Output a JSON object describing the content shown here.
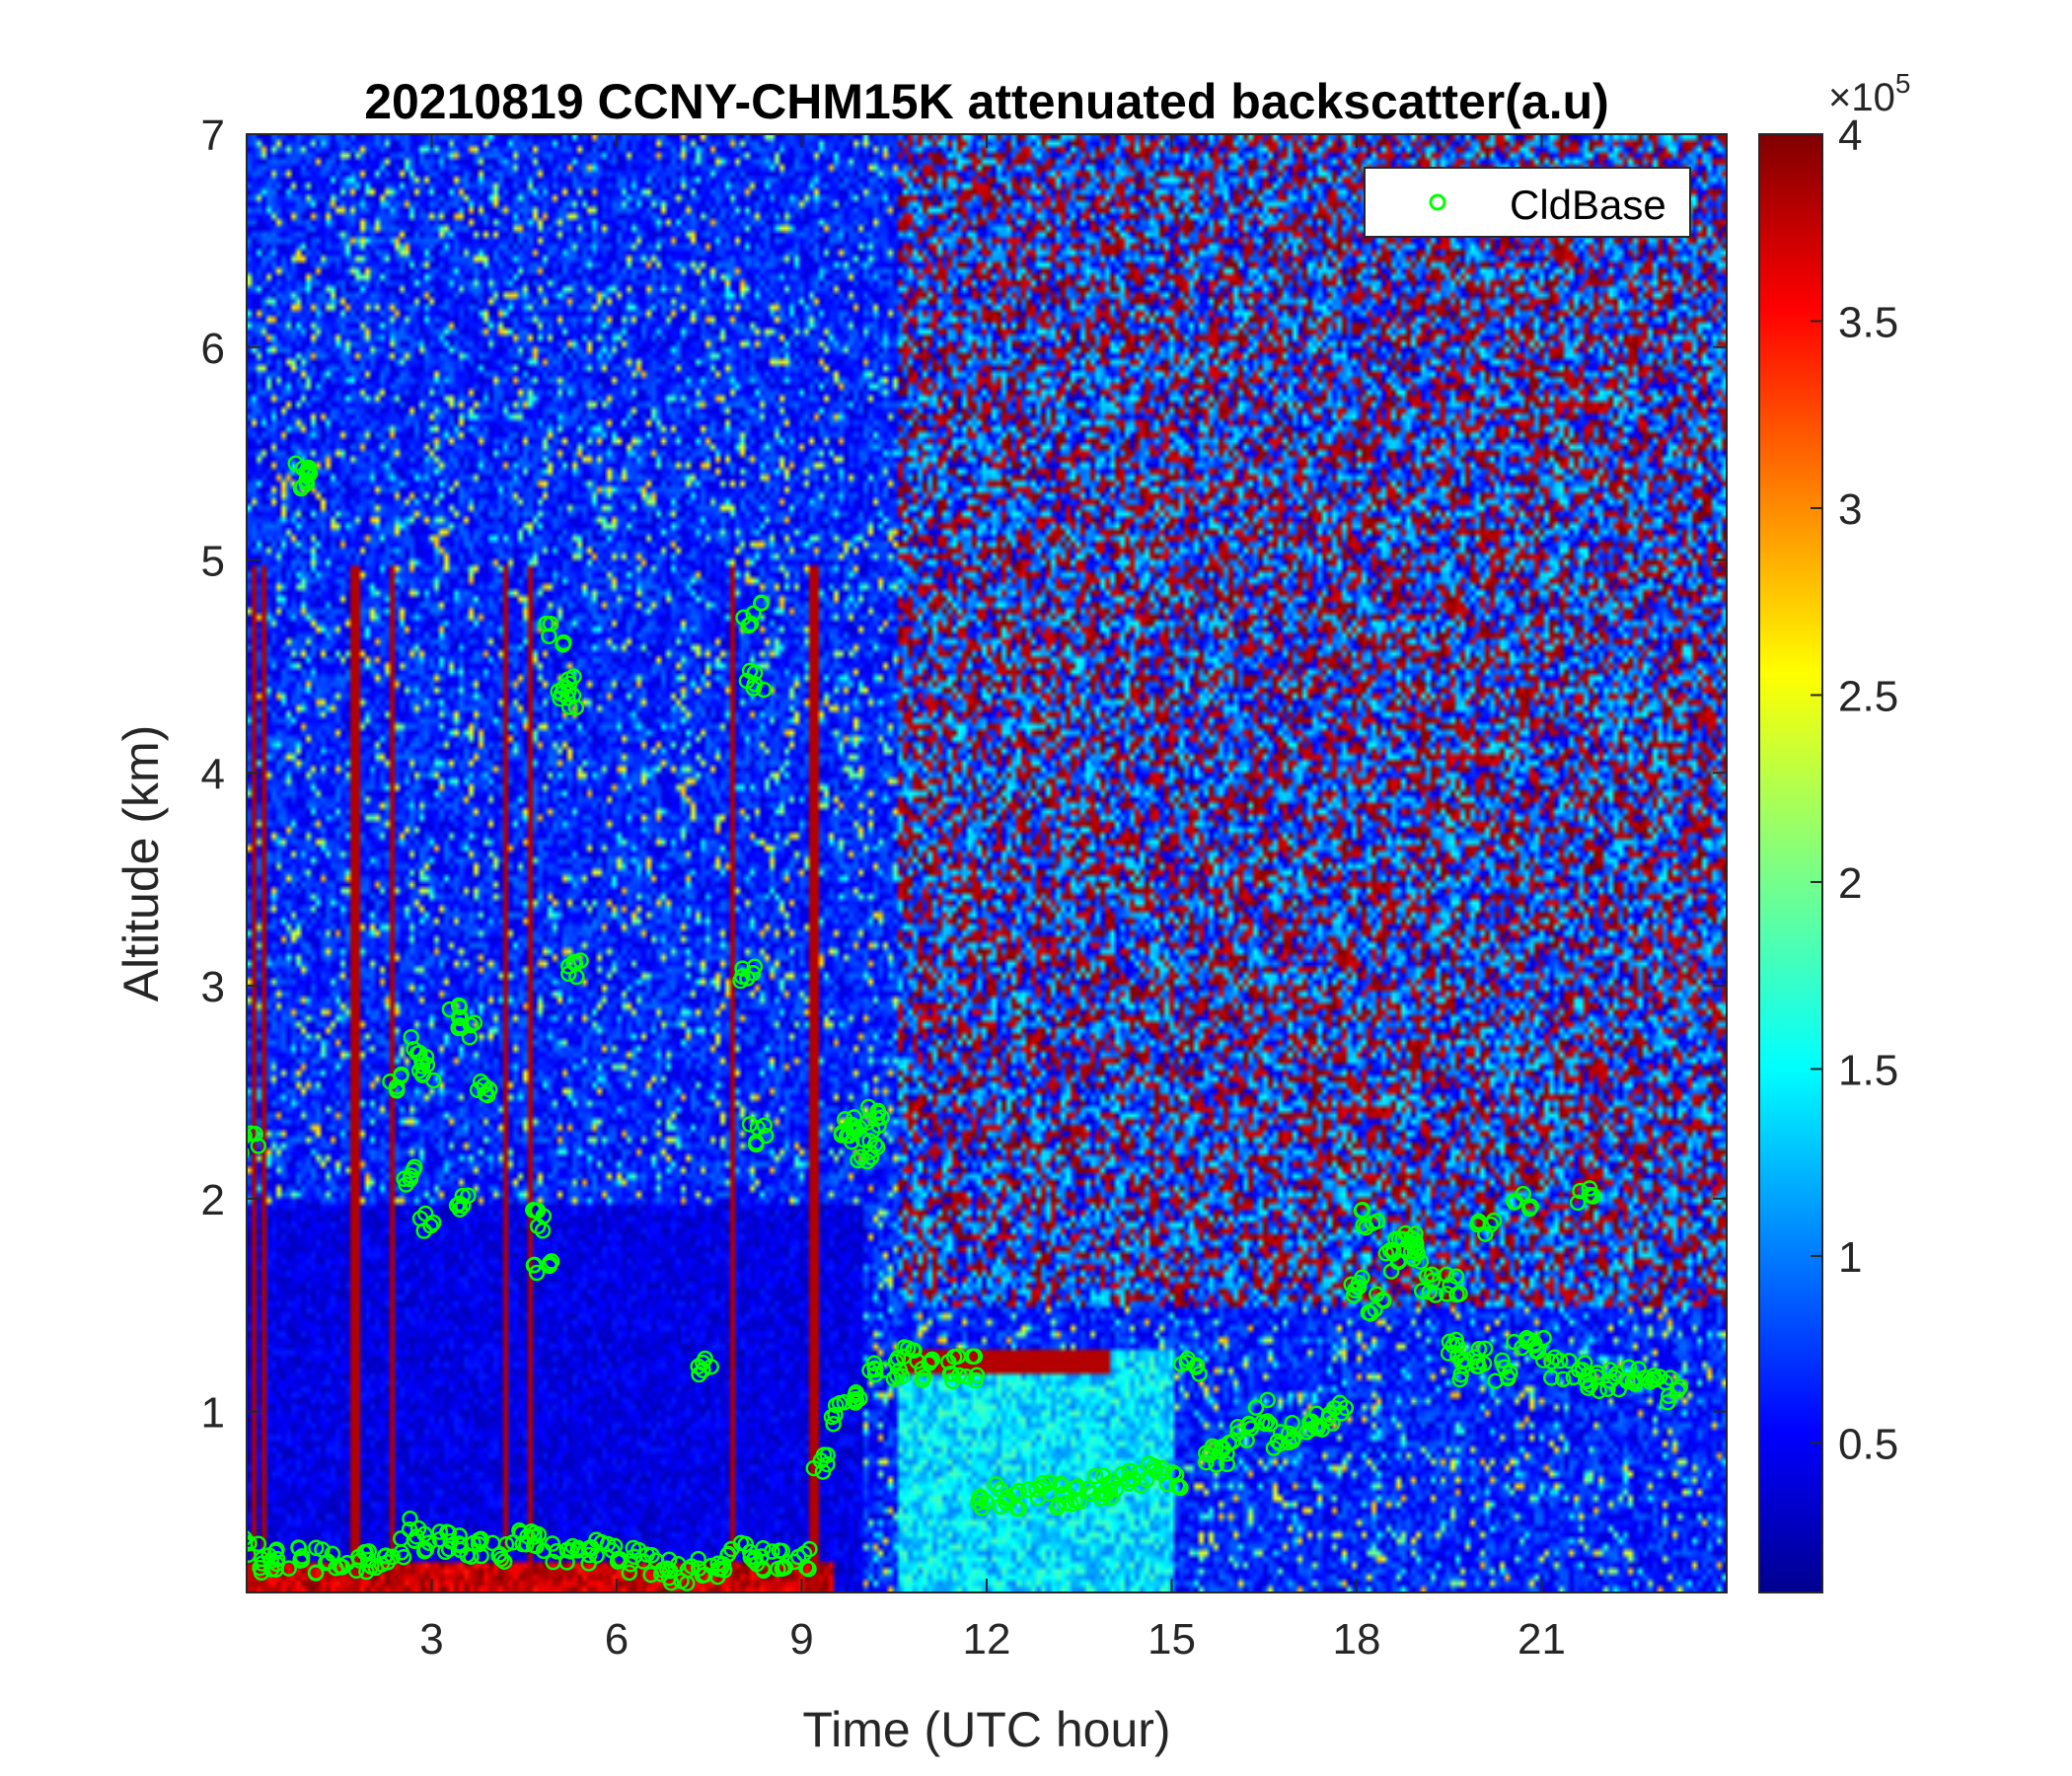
{
  "chart_data": {
    "type": "heatmap",
    "title": "20210819 CCNY-CHM15K attenuated backscatter(a.u)",
    "xlabel": "Time (UTC hour)",
    "ylabel": "Altitude (km)",
    "xlim": [
      0,
      24
    ],
    "ylim": [
      0.15,
      7
    ],
    "x_ticks": [
      3,
      6,
      9,
      12,
      15,
      18,
      21
    ],
    "y_ticks": [
      1,
      2,
      3,
      4,
      5,
      6,
      7
    ],
    "colormap": "jet",
    "colorbar": {
      "exponent_label": "×10",
      "exponent_power": "5",
      "min": 0.1,
      "max": 4,
      "ticks": [
        0.5,
        1,
        1.5,
        2,
        2.5,
        3,
        3.5,
        4
      ]
    },
    "legend": {
      "location": "top-right",
      "entries": [
        "CldBase"
      ]
    },
    "series": [
      {
        "name": "CldBase",
        "marker": "circle",
        "color": "#00ff00",
        "x": [
          0.1,
          0.3,
          0.6,
          0.9,
          1.2,
          1.5,
          1.8,
          2.1,
          2.4,
          2.7,
          3.0,
          3.3,
          3.6,
          3.9,
          4.2,
          4.5,
          4.8,
          5.1,
          5.4,
          5.7,
          6.0,
          6.3,
          6.6,
          6.9,
          7.2,
          7.5,
          7.8,
          8.1,
          8.4,
          8.7,
          9.0,
          9.3,
          9.6,
          9.9,
          10.2,
          10.5,
          10.8,
          11.1,
          11.4,
          11.7,
          12.0,
          12.3,
          12.6,
          12.9,
          13.2,
          13.5,
          13.8,
          14.1,
          14.4,
          14.7,
          15.0,
          15.3,
          15.6,
          15.9,
          16.2,
          16.5,
          16.8,
          17.1,
          17.4,
          17.7,
          18.0,
          18.3,
          18.6,
          18.9,
          19.2,
          19.5,
          19.8,
          20.1,
          20.4,
          20.7,
          21.0,
          21.3,
          21.6,
          21.9,
          22.2,
          22.5,
          22.8,
          23.1,
          0.05,
          0.9,
          0.95,
          2.4,
          2.6,
          2.8,
          2.9,
          3.4,
          3.6,
          3.8,
          2.9,
          3.5,
          4.7,
          4.8,
          5.0,
          5.2,
          5.25,
          5.3,
          8.2,
          8.25,
          8.1,
          8.3,
          7.4,
          9.7,
          9.8,
          10.0,
          10.1,
          10.2,
          18.2,
          18.6,
          19.0,
          19.6,
          20.1,
          20.7,
          21.7
        ],
        "y": [
          0.35,
          0.3,
          0.3,
          0.32,
          0.3,
          0.28,
          0.3,
          0.3,
          0.35,
          0.45,
          0.4,
          0.38,
          0.36,
          0.35,
          0.35,
          0.4,
          0.38,
          0.35,
          0.33,
          0.35,
          0.35,
          0.3,
          0.28,
          0.25,
          0.25,
          0.25,
          0.3,
          0.35,
          0.3,
          0.3,
          0.3,
          0.75,
          1.0,
          1.1,
          1.2,
          1.2,
          1.25,
          1.2,
          1.2,
          1.2,
          0.55,
          0.6,
          0.6,
          0.62,
          0.6,
          0.6,
          0.65,
          0.65,
          0.7,
          0.7,
          0.7,
          1.2,
          0.8,
          0.8,
          0.9,
          1.0,
          0.85,
          0.9,
          0.95,
          1.0,
          1.6,
          1.5,
          1.7,
          1.8,
          1.6,
          1.3,
          1.2,
          1.25,
          1.2,
          1.3,
          1.3,
          1.2,
          1.2,
          1.15,
          1.15,
          1.15,
          1.2,
          1.1,
          2.25,
          5.4,
          5.38,
          2.55,
          2.1,
          2.7,
          2.6,
          2.85,
          2.8,
          2.5,
          1.9,
          2.0,
          1.9,
          1.7,
          4.65,
          4.4,
          4.35,
          3.1,
          4.75,
          4.45,
          3.05,
          2.3,
          1.2,
          2.3,
          2.35,
          2.2,
          2.3,
          2.4,
          1.9,
          1.8,
          1.75,
          1.6,
          1.85,
          2.0,
          2.02
        ]
      }
    ]
  }
}
